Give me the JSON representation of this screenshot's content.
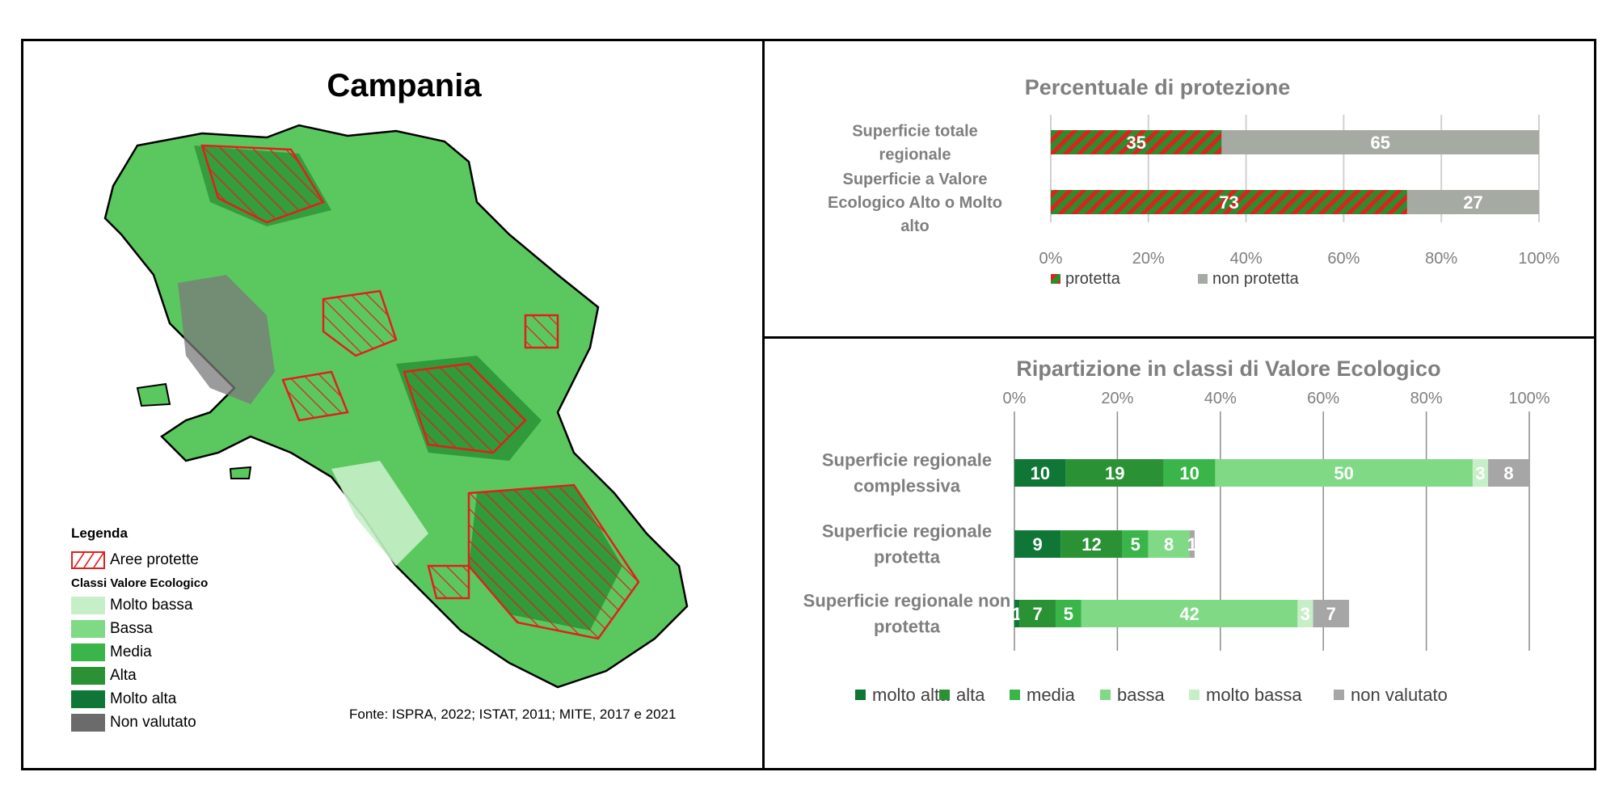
{
  "map": {
    "title": "Campania",
    "legend_title": "Legenda",
    "protected_label": "Aree protette",
    "classes_title": "Classi Valore Ecologico",
    "classes": [
      {
        "label": "Molto bassa",
        "color": "#c6efc8"
      },
      {
        "label": "Bassa",
        "color": "#7fd985"
      },
      {
        "label": "Media",
        "color": "#3ab54a"
      },
      {
        "label": "Alta",
        "color": "#2a9235"
      },
      {
        "label": "Molto alta",
        "color": "#0f7636"
      },
      {
        "label": "Non valutato",
        "color": "#6b6b6b"
      }
    ],
    "protected_color": "#e0201b",
    "source": "Fonte: ISPRA, 2022; ISTAT, 2011; MITE, 2017 e 2021"
  },
  "chart_data": [
    {
      "type": "bar",
      "orientation": "horizontal",
      "stacked": true,
      "title": "Percentuale di protezione",
      "categories": [
        "Superficie totale regionale",
        "Superficie a Valore Ecologico Alto o Molto alto"
      ],
      "series": [
        {
          "name": "protetta",
          "values": [
            35,
            73
          ],
          "color": "#2e8b2e",
          "pattern": "hatch-red"
        },
        {
          "name": "non protetta",
          "values": [
            65,
            27
          ],
          "color": "#a5aaa2"
        }
      ],
      "xlim": [
        0,
        100
      ],
      "xticks": [
        "0%",
        "20%",
        "40%",
        "60%",
        "80%",
        "100%"
      ],
      "grid": true,
      "legend_position": "bottom"
    },
    {
      "type": "bar",
      "orientation": "horizontal",
      "stacked": true,
      "title": "Ripartizione in classi di Valore Ecologico",
      "categories": [
        "Superficie regionale complessiva",
        "Superficie regionale protetta",
        "Superficie regionale non protetta"
      ],
      "series": [
        {
          "name": "molto alta",
          "values": [
            10,
            9,
            1
          ],
          "color": "#0f7636"
        },
        {
          "name": "alta",
          "values": [
            19,
            12,
            7
          ],
          "color": "#2a9235"
        },
        {
          "name": "media",
          "values": [
            10,
            5,
            5
          ],
          "color": "#3ab54a"
        },
        {
          "name": "bassa",
          "values": [
            50,
            8,
            42
          ],
          "color": "#7fd985"
        },
        {
          "name": "molto bassa",
          "values": [
            3,
            0,
            3
          ],
          "color": "#c6efc8"
        },
        {
          "name": "non valutato",
          "values": [
            8,
            1,
            7
          ],
          "color": "#a6a6a6"
        }
      ],
      "segment_labels": [
        [
          "10",
          "19",
          "10",
          "50",
          "3",
          "8"
        ],
        [
          "9",
          "12",
          "5",
          "8",
          "",
          "1"
        ],
        [
          "1",
          "7",
          "5",
          "42",
          "3",
          "7"
        ]
      ],
      "xlim": [
        0,
        100
      ],
      "xticks": [
        "0%",
        "20%",
        "40%",
        "60%",
        "80%",
        "100%"
      ],
      "grid": true,
      "legend_position": "bottom"
    }
  ]
}
